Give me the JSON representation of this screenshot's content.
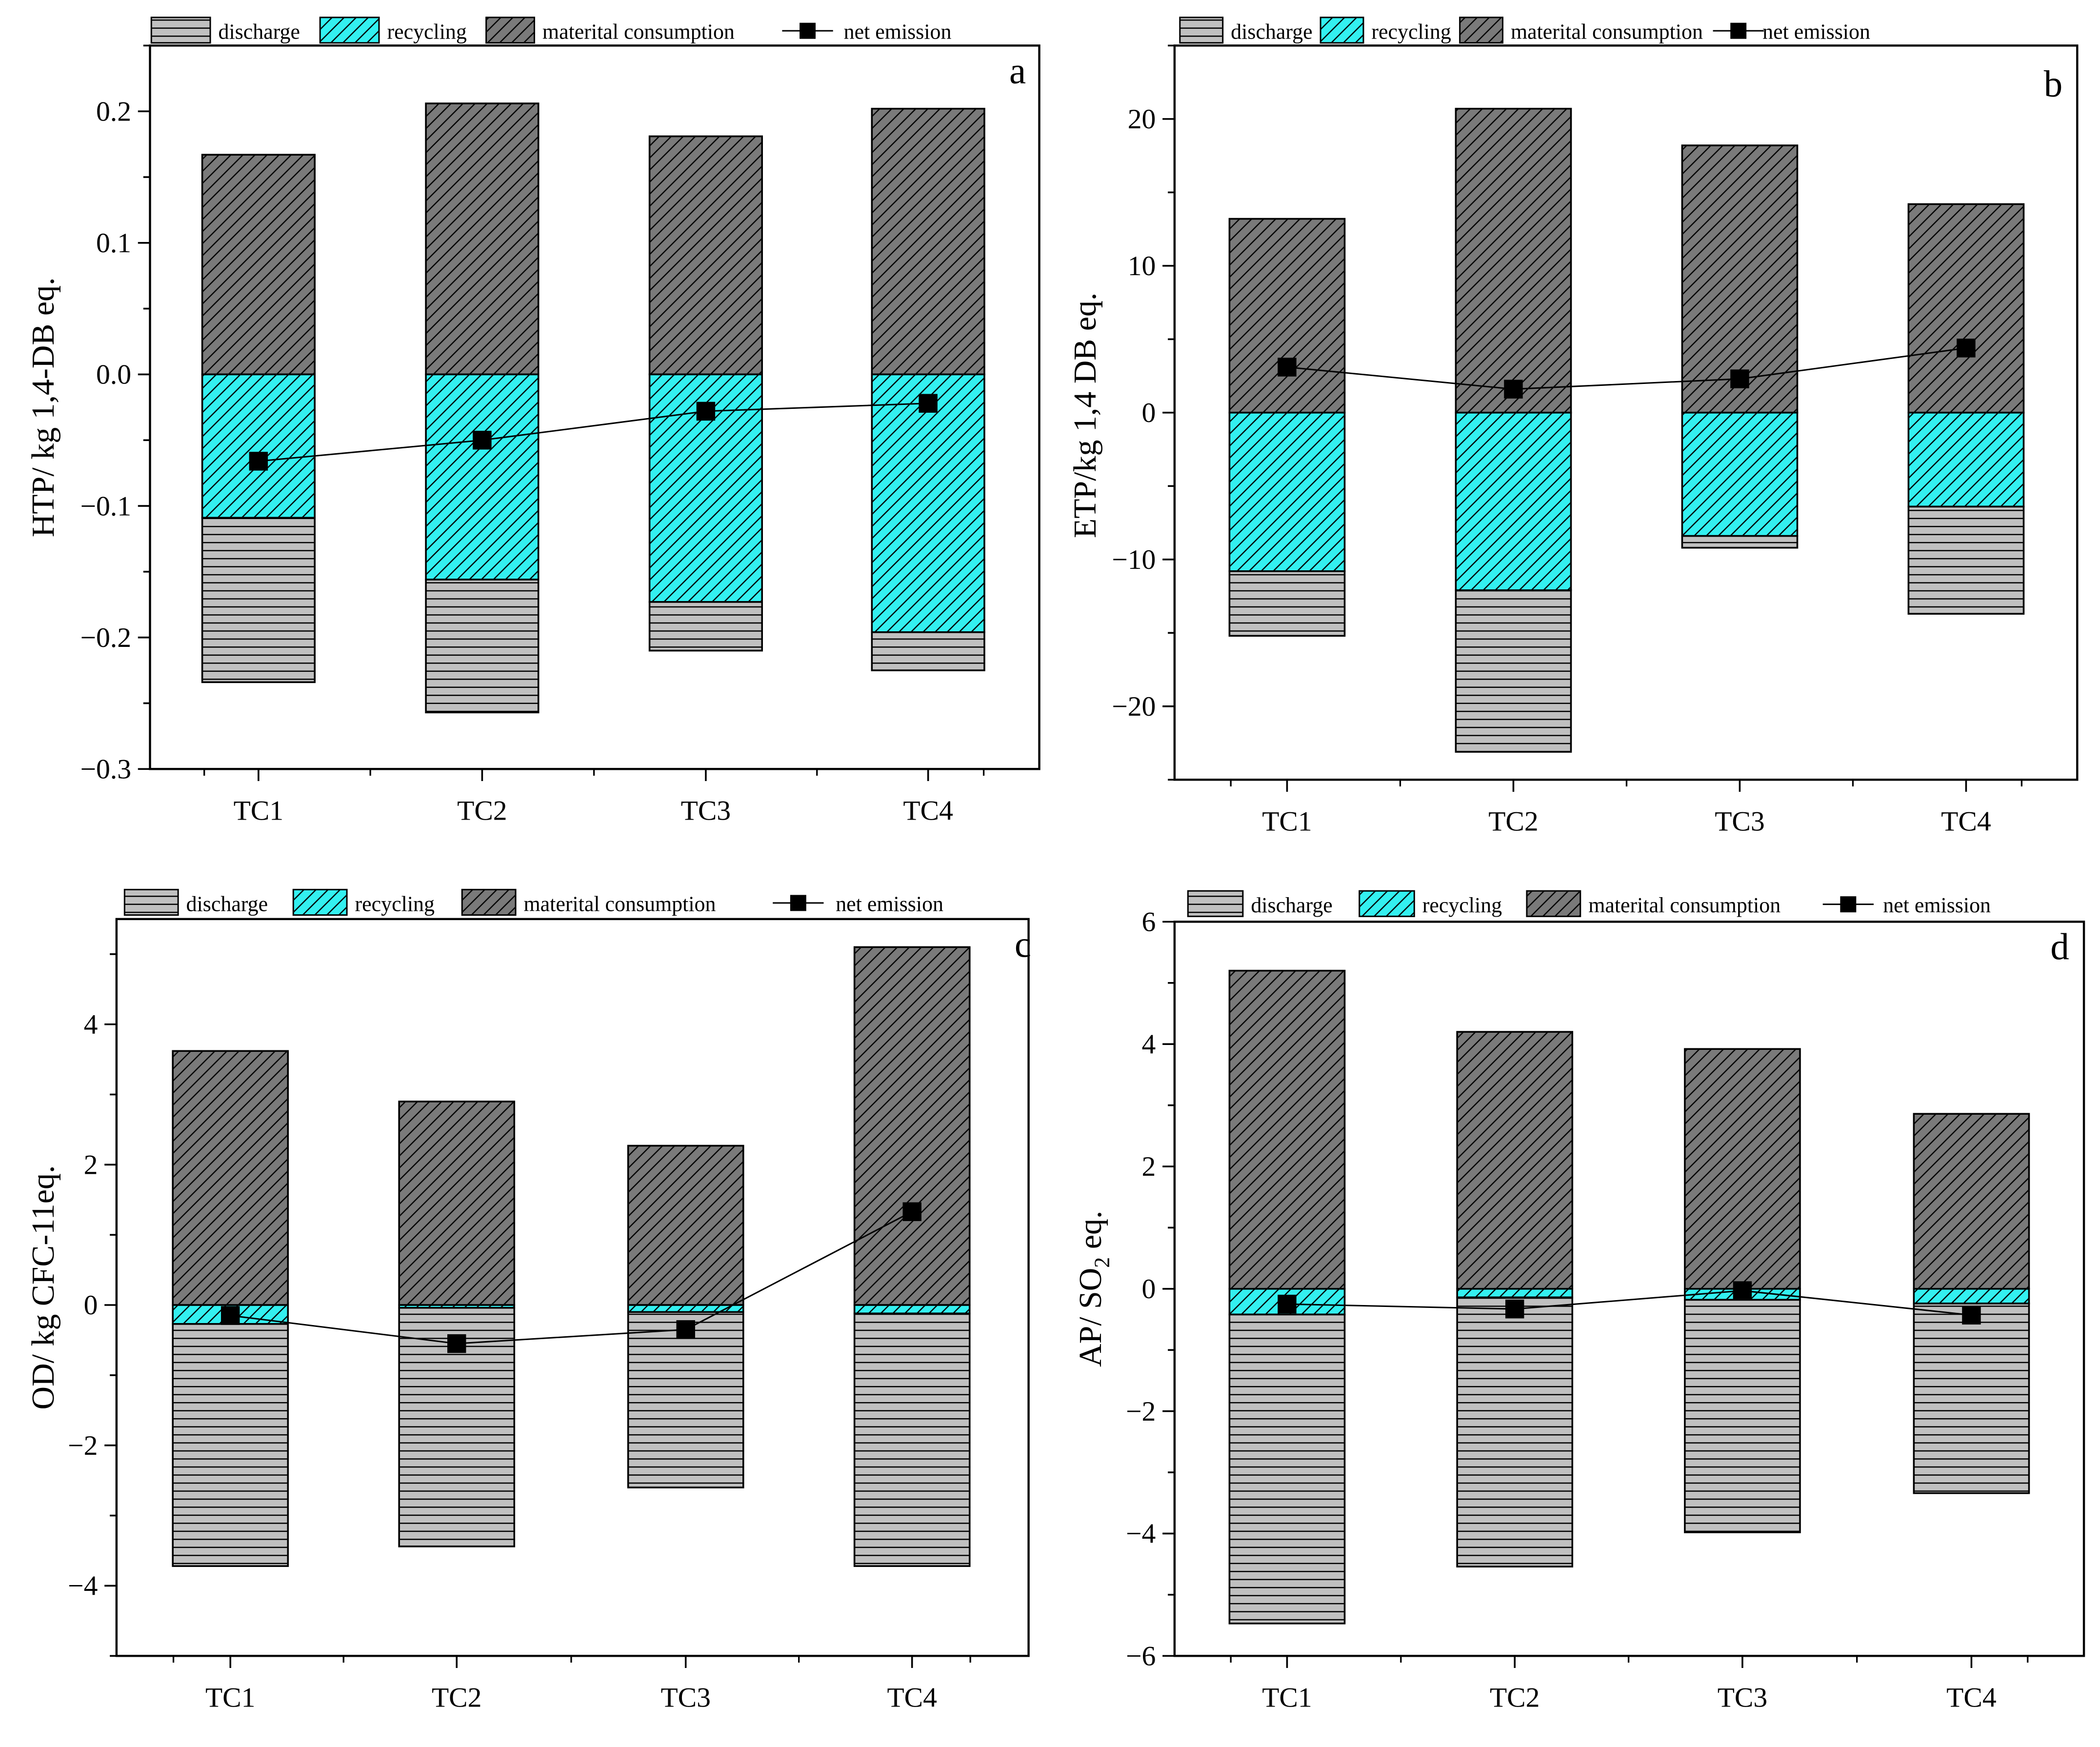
{
  "colors": {
    "discharge": "#c0c0c0",
    "recycling": "#33f0f0",
    "material": "#7a7a7a",
    "net_emission": "#000000"
  },
  "legend": [
    "discharge",
    "recycling",
    "materital consumption",
    "net emission"
  ],
  "chart_data": [
    {
      "type": "bar",
      "stacked": true,
      "label": "a",
      "categories": [
        "TC1",
        "TC2",
        "TC3",
        "TC4"
      ],
      "ylabel": "HTP/ kg 1,4-DB eq.",
      "ylim": [
        -0.3,
        0.25
      ],
      "yticks": [
        -0.3,
        -0.2,
        -0.1,
        0.0,
        0.1,
        0.2
      ],
      "ytick_labels": [
        "−0.3",
        "−0.2",
        "−0.1",
        "0.0",
        "0.1",
        "0.2"
      ],
      "legend_placement": "top",
      "series": [
        {
          "name": "discharge",
          "values": [
            -0.125,
            -0.101,
            -0.037,
            -0.029
          ]
        },
        {
          "name": "recycling",
          "values": [
            -0.109,
            -0.156,
            -0.173,
            -0.196
          ]
        },
        {
          "name": "materital consumption",
          "values": [
            0.167,
            0.206,
            0.181,
            0.202
          ]
        },
        {
          "name": "net emission",
          "values": [
            -0.066,
            -0.05,
            -0.028,
            -0.022
          ]
        }
      ]
    },
    {
      "type": "bar",
      "stacked": true,
      "label": "b",
      "categories": [
        "TC1",
        "TC2",
        "TC3",
        "TC4"
      ],
      "ylabel": "ETP/kg 1,4 DB eq.",
      "ylim": [
        -25,
        25
      ],
      "yticks": [
        -20,
        -10,
        0,
        10,
        20
      ],
      "ytick_labels": [
        "−20",
        "−10",
        "0",
        "10",
        "20"
      ],
      "legend_placement": "top",
      "series": [
        {
          "name": "discharge",
          "values": [
            -4.4,
            -11.0,
            -0.8,
            -7.3
          ]
        },
        {
          "name": "recycling",
          "values": [
            -10.8,
            -12.1,
            -8.4,
            -6.4
          ]
        },
        {
          "name": "materital consumption",
          "values": [
            13.2,
            20.7,
            18.2,
            14.2
          ]
        },
        {
          "name": "net emission",
          "values": [
            3.1,
            1.6,
            2.3,
            4.4
          ]
        }
      ]
    },
    {
      "type": "bar",
      "stacked": true,
      "label": "c",
      "categories": [
        "TC1",
        "TC2",
        "TC3",
        "TC4"
      ],
      "ylabel": "OD/ kg CFC-11eq.",
      "ylim": [
        -5,
        5.5
      ],
      "yticks": [
        -4,
        -2,
        0,
        2,
        4
      ],
      "ytick_labels": [
        "−4",
        "−2",
        "0",
        "2",
        "4"
      ],
      "legend_placement": "top",
      "series": [
        {
          "name": "discharge",
          "values": [
            -3.45,
            -3.4,
            -2.5,
            -3.6
          ]
        },
        {
          "name": "recycling",
          "values": [
            -0.27,
            -0.04,
            -0.1,
            -0.12
          ]
        },
        {
          "name": "materital consumption",
          "values": [
            3.62,
            2.9,
            2.27,
            5.1
          ]
        },
        {
          "name": "net emission",
          "values": [
            -0.15,
            -0.55,
            -0.35,
            1.33
          ]
        }
      ]
    },
    {
      "type": "bar",
      "stacked": true,
      "label": "d",
      "categories": [
        "TC1",
        "TC2",
        "TC3",
        "TC4"
      ],
      "ylabel_parts": [
        "AP/ SO",
        "2",
        " eq."
      ],
      "ylim": [
        -6,
        6
      ],
      "yticks": [
        -6,
        -4,
        -2,
        0,
        2,
        4,
        6
      ],
      "ytick_labels": [
        "−6",
        "−4",
        "−2",
        "0",
        "2",
        "4",
        "6"
      ],
      "legend_placement": "top",
      "series": [
        {
          "name": "discharge",
          "values": [
            -5.05,
            -4.4,
            -3.8,
            -3.1
          ]
        },
        {
          "name": "recycling",
          "values": [
            -0.42,
            -0.14,
            -0.18,
            -0.24
          ]
        },
        {
          "name": "materital consumption",
          "values": [
            5.2,
            4.2,
            3.92,
            2.86
          ]
        },
        {
          "name": "net emission",
          "values": [
            -0.25,
            -0.33,
            -0.03,
            -0.43
          ]
        }
      ]
    }
  ]
}
